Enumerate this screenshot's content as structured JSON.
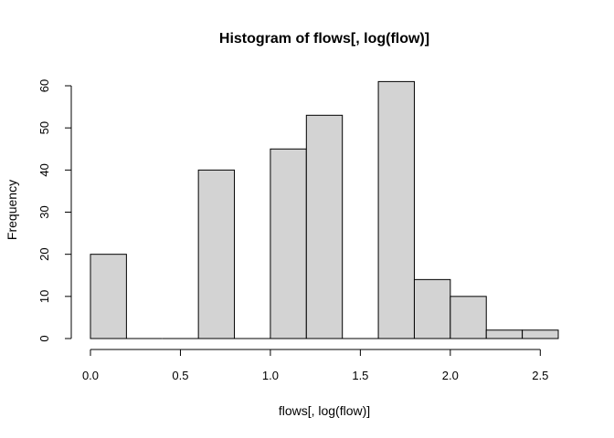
{
  "chart_data": {
    "type": "bar",
    "title": "Histogram of flows[, log(flow)]",
    "xlabel": "flows[, log(flow)]",
    "ylabel": "Frequency",
    "bin_edges": [
      0.0,
      0.2,
      0.4,
      0.6,
      0.8,
      1.0,
      1.2,
      1.4,
      1.6,
      1.8,
      2.0,
      2.2,
      2.4,
      2.6
    ],
    "values": [
      20,
      0,
      0,
      40,
      0,
      45,
      53,
      0,
      61,
      14,
      10,
      2,
      2
    ],
    "xlim": [
      0.0,
      2.6
    ],
    "ylim": [
      0,
      60
    ],
    "x_ticks": [
      0.0,
      0.5,
      1.0,
      1.5,
      2.0,
      2.5
    ],
    "x_tick_labels": [
      "0.0",
      "0.5",
      "1.0",
      "1.5",
      "2.0",
      "2.5"
    ],
    "y_ticks": [
      0,
      10,
      20,
      30,
      40,
      50,
      60
    ],
    "y_tick_labels": [
      "0",
      "10",
      "20",
      "30",
      "40",
      "50",
      "60"
    ],
    "bar_color": "#d3d3d3",
    "grid": false,
    "legend": "none"
  }
}
